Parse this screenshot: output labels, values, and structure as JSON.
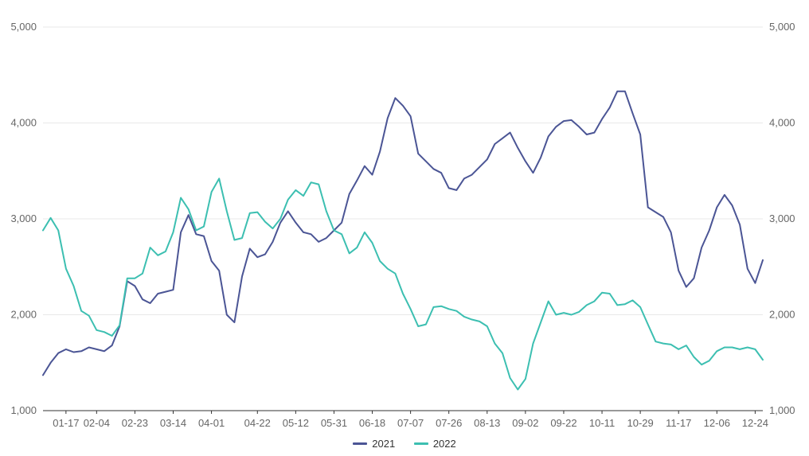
{
  "chart_data": {
    "type": "line",
    "title": "",
    "xlabel": "",
    "ylabel": "",
    "ylim": [
      1000,
      5000
    ],
    "y_ticks": [
      "1,000",
      "2,000",
      "3,000",
      "4,000",
      "5,000"
    ],
    "y_tick_values": [
      1000,
      2000,
      3000,
      4000,
      5000
    ],
    "dual_y_axis_mirrored": true,
    "grid": "horizontal",
    "legend_position": "bottom-center",
    "x_tick_labels": [
      "01-17",
      "02-04",
      "02-23",
      "03-14",
      "04-01",
      "04-22",
      "05-12",
      "05-31",
      "06-18",
      "07-07",
      "07-26",
      "08-13",
      "09-02",
      "09-22",
      "10-11",
      "10-29",
      "11-17",
      "12-06",
      "12-24"
    ],
    "x": [
      "01-04",
      "01-08",
      "01-12",
      "01-17",
      "01-22",
      "01-27",
      "02-01",
      "02-04",
      "02-08",
      "02-12",
      "02-15",
      "02-19",
      "02-23",
      "02-27",
      "03-03",
      "03-07",
      "03-10",
      "03-14",
      "03-18",
      "03-21",
      "03-25",
      "03-29",
      "04-01",
      "04-05",
      "04-09",
      "04-12",
      "04-15",
      "04-19",
      "04-22",
      "04-26",
      "04-30",
      "05-04",
      "05-08",
      "05-12",
      "05-16",
      "05-20",
      "05-24",
      "05-28",
      "05-31",
      "06-04",
      "06-08",
      "06-11",
      "06-15",
      "06-18",
      "06-22",
      "06-26",
      "06-30",
      "07-03",
      "07-07",
      "07-11",
      "07-15",
      "07-19",
      "07-23",
      "07-26",
      "07-30",
      "08-03",
      "08-07",
      "08-10",
      "08-13",
      "08-17",
      "08-21",
      "08-25",
      "08-29",
      "09-02",
      "09-06",
      "09-10",
      "09-14",
      "09-18",
      "09-22",
      "09-26",
      "09-30",
      "10-04",
      "10-08",
      "10-11",
      "10-15",
      "10-19",
      "10-23",
      "10-26",
      "10-29",
      "11-02",
      "11-06",
      "11-10",
      "11-14",
      "11-17",
      "11-21",
      "11-25",
      "11-29",
      "12-02",
      "12-06",
      "12-10",
      "12-14",
      "12-18",
      "12-21",
      "12-24",
      "12-28"
    ],
    "series": [
      {
        "name": "2021",
        "color": "#4b5595",
        "values": [
          1370,
          1500,
          1600,
          1640,
          1610,
          1620,
          1660,
          1640,
          1620,
          1680,
          1880,
          2350,
          2300,
          2160,
          2120,
          2220,
          2240,
          2260,
          2860,
          3040,
          2840,
          2820,
          2560,
          2460,
          2000,
          1920,
          2400,
          2690,
          2600,
          2630,
          2760,
          2960,
          3080,
          2960,
          2860,
          2840,
          2760,
          2800,
          2880,
          2960,
          3260,
          3400,
          3550,
          3460,
          3700,
          4050,
          4260,
          4180,
          4070,
          3680,
          3600,
          3520,
          3480,
          3320,
          3300,
          3420,
          3460,
          3540,
          3620,
          3780,
          3840,
          3900,
          3740,
          3600,
          3480,
          3640,
          3860,
          3960,
          4020,
          4030,
          3960,
          3880,
          3900,
          4040,
          4160,
          4330,
          4330,
          4100,
          3880,
          3120,
          3070,
          3020,
          2860,
          2460,
          2290,
          2380,
          2700,
          2880,
          3120,
          3250,
          3140,
          2940,
          2480,
          2330,
          2570
        ]
      },
      {
        "name": "2022",
        "color": "#3cbfb1",
        "values": [
          2880,
          3010,
          2880,
          2480,
          2300,
          2040,
          1990,
          1840,
          1820,
          1780,
          1890,
          2380,
          2380,
          2430,
          2700,
          2620,
          2660,
          2860,
          3220,
          3100,
          2880,
          2920,
          3280,
          3420,
          3080,
          2780,
          2800,
          3060,
          3070,
          2970,
          2900,
          3000,
          3200,
          3300,
          3240,
          3380,
          3360,
          3080,
          2880,
          2840,
          2640,
          2700,
          2860,
          2750,
          2560,
          2480,
          2430,
          2220,
          2060,
          1880,
          1900,
          2080,
          2090,
          2060,
          2040,
          1980,
          1950,
          1930,
          1880,
          1700,
          1600,
          1340,
          1220,
          1330,
          1700,
          1920,
          2140,
          2000,
          2020,
          2000,
          2030,
          2100,
          2140,
          2230,
          2220,
          2100,
          2110,
          2150,
          2080,
          1900,
          1720,
          1700,
          1690,
          1640,
          1680,
          1560,
          1480,
          1520,
          1620,
          1660,
          1660,
          1640,
          1660,
          1640,
          1530
        ]
      }
    ]
  }
}
